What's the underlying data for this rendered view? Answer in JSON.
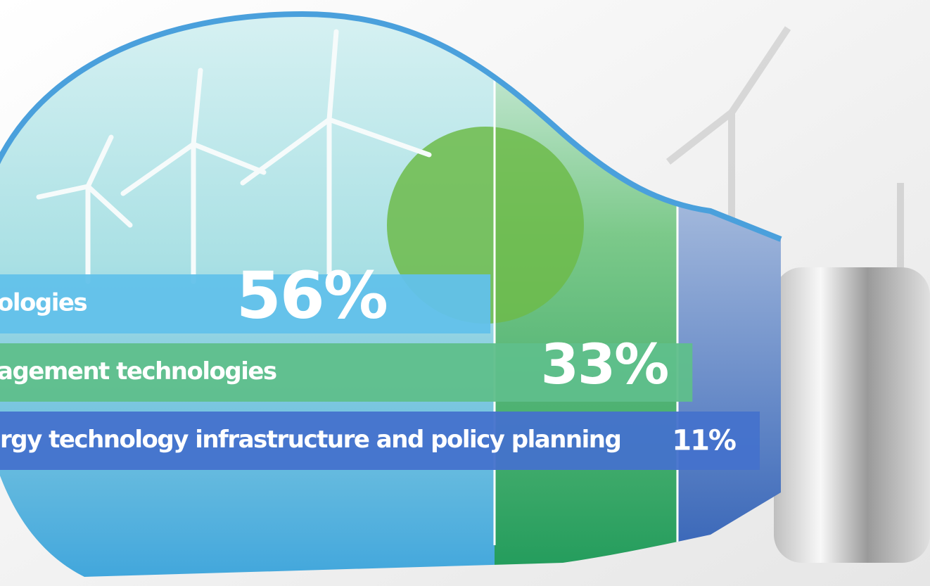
{
  "chart_data": {
    "type": "bar",
    "categories": [
      "ologies",
      "agement technologies",
      "rgy technology infrastructure and policy planning"
    ],
    "values": [
      56,
      33,
      11
    ],
    "value_labels": [
      "56%",
      "33%",
      "11%"
    ],
    "colors": [
      "#62c1ea",
      "#5fbf8b",
      "#4572cc"
    ]
  }
}
